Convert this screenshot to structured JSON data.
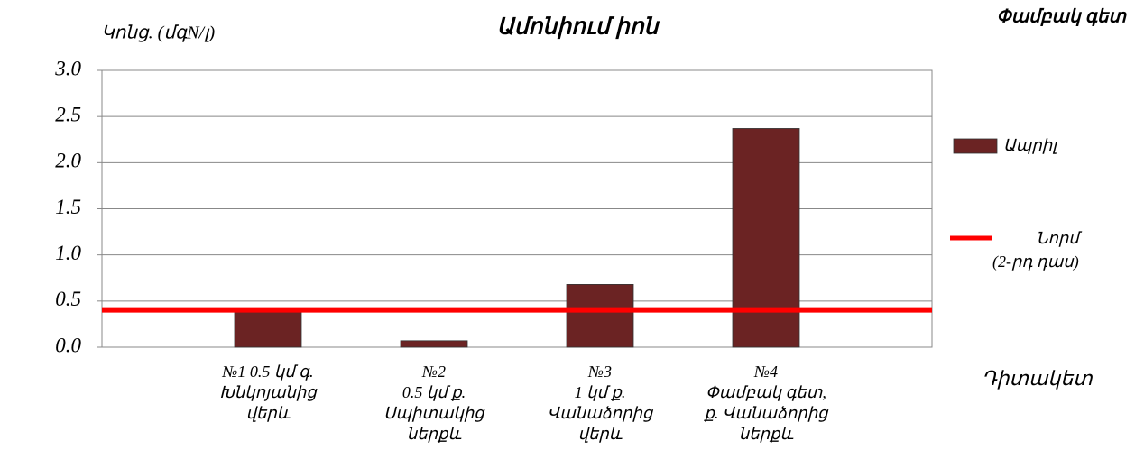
{
  "chart_data": {
    "type": "bar",
    "title": "Ամոնիում իոն",
    "subtitle": "Փամբակ գետ",
    "y_label": "Կոնց. (մգN/լ)",
    "x_label": "Դիտակետ",
    "categories": [
      "№1 0.5 կմ գ.\nԽնկոյանից\nվերև",
      "№2\n0.5 կմ ք.\nՍպիտակից\nներքև",
      "№3\n1 կմ ք.\nՎանաձորից\nվերև",
      "№4\nՓամբակ գետ,\nք. Վանաձորից\nներքև"
    ],
    "series": [
      {
        "name": "Ապրիլ",
        "color": "#6b2323",
        "values": [
          0.38,
          0.07,
          0.68,
          2.37
        ]
      }
    ],
    "norm": {
      "name": "Նորմ\n(2-րդ դաս)",
      "value": 0.4,
      "color": "#ff0000"
    },
    "ylim": [
      0,
      3
    ],
    "yticks": [
      {
        "value": 0,
        "label": "0.0"
      },
      0.5,
      {
        "value": 1,
        "label": "1.0"
      },
      1.5,
      {
        "value": 2,
        "label": "2.0"
      },
      2.5,
      {
        "value": 3,
        "label": "3.0"
      }
    ],
    "grid": true,
    "legend": "right"
  }
}
